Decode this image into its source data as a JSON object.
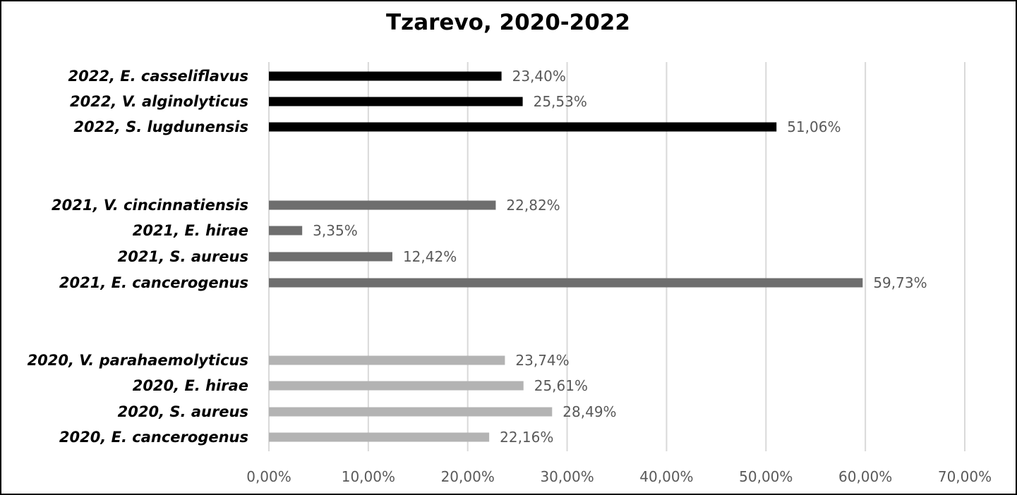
{
  "chart_data": {
    "type": "bar",
    "orientation": "horizontal",
    "title": "Tzarevo, 2020-2022",
    "xlabel": "",
    "ylabel": "",
    "xlim": [
      0,
      70
    ],
    "x_ticks": [
      "0,00%",
      "10,00%",
      "20,00%",
      "30,00%",
      "40,00%",
      "50,00%",
      "60,00%",
      "70,00%"
    ],
    "grid": "vertical",
    "legend": "none",
    "group_colors": {
      "2022": "#000000",
      "2021": "#6e6e6e",
      "2020": "#b3b3b3"
    },
    "bars": [
      {
        "label": "2022, E. casseliflavus",
        "group": "2022",
        "value": 23.4,
        "value_label": "23,40%"
      },
      {
        "label": "2022, V. alginolyticus",
        "group": "2022",
        "value": 25.53,
        "value_label": "25,53%"
      },
      {
        "label": "2022, S. lugdunensis",
        "group": "2022",
        "value": 51.06,
        "value_label": "51,06%"
      },
      {
        "label": "2021, V. cincinnatiensis",
        "group": "2021",
        "value": 22.82,
        "value_label": "22,82%"
      },
      {
        "label": "2021, E. hirae",
        "group": "2021",
        "value": 3.35,
        "value_label": "3,35%"
      },
      {
        "label": "2021, S. aureus",
        "group": "2021",
        "value": 12.42,
        "value_label": "12,42%"
      },
      {
        "label": "2021, E. cancerogenus",
        "group": "2021",
        "value": 59.73,
        "value_label": "59,73%"
      },
      {
        "label": "2020, V. parahaemolyticus",
        "group": "2020",
        "value": 23.74,
        "value_label": "23,74%"
      },
      {
        "label": "2020, E. hirae",
        "group": "2020",
        "value": 25.61,
        "value_label": "25,61%"
      },
      {
        "label": "2020, S. aureus",
        "group": "2020",
        "value": 28.49,
        "value_label": "28,49%"
      },
      {
        "label": "2020, E. cancerogenus",
        "group": "2020",
        "value": 22.16,
        "value_label": "22,16%"
      }
    ]
  }
}
